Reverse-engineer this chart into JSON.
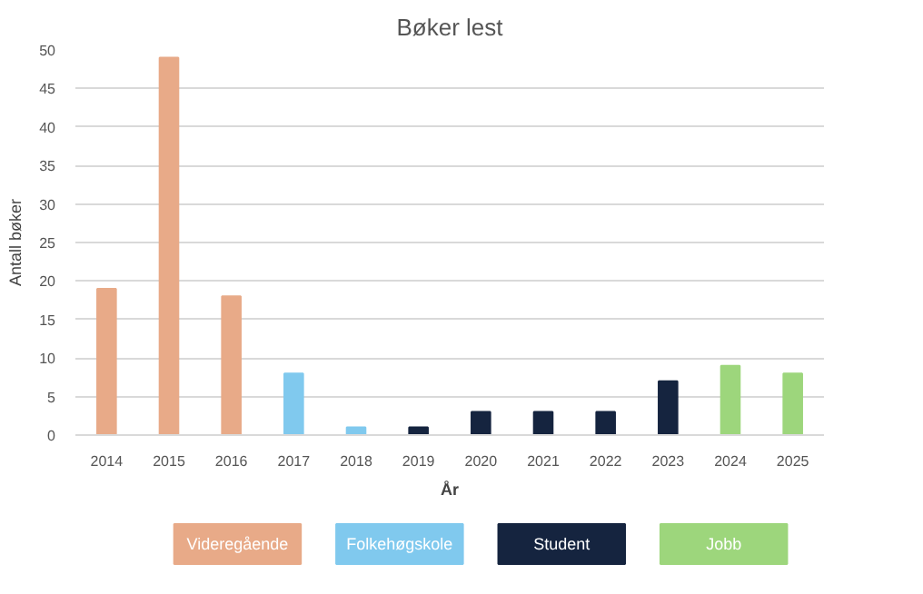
{
  "chart_data": {
    "type": "bar",
    "title": "Bøker lest",
    "xlabel": "År",
    "ylabel": "Antall bøker",
    "categories": [
      "2014",
      "2015",
      "2016",
      "2017",
      "2018",
      "2019",
      "2020",
      "2021",
      "2022",
      "2023",
      "2024",
      "2025"
    ],
    "series": [
      {
        "name": "Videregående",
        "color": "#e8aa88",
        "values": [
          19,
          49,
          18,
          null,
          null,
          null,
          null,
          null,
          null,
          null,
          null,
          null
        ]
      },
      {
        "name": "Folkehøgskole",
        "color": "#80c9ee",
        "values": [
          null,
          null,
          null,
          8,
          1,
          null,
          null,
          null,
          null,
          null,
          null,
          null
        ]
      },
      {
        "name": "Student",
        "color": "#15243f",
        "values": [
          null,
          null,
          null,
          null,
          null,
          1,
          3,
          3,
          3,
          7,
          null,
          null
        ]
      },
      {
        "name": "Jobb",
        "color": "#9dd67c",
        "values": [
          null,
          null,
          null,
          null,
          null,
          null,
          null,
          null,
          null,
          null,
          9,
          8
        ]
      }
    ],
    "ylim": [
      0,
      50
    ],
    "yticks": [
      0,
      5,
      10,
      15,
      20,
      25,
      30,
      35,
      40,
      45,
      50
    ],
    "grid": "y",
    "legend": "bottom"
  }
}
